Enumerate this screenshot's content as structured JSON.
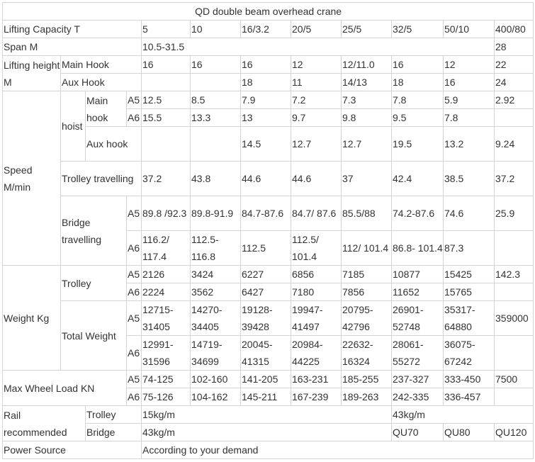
{
  "title": "QD double beam overhead crane",
  "capacity": {
    "label": "Lifting Capacity   T",
    "values": [
      "5",
      "10",
      "16/3.2",
      "20/5",
      "25/5",
      "32/5",
      "50/10",
      "400/80"
    ]
  },
  "span": {
    "label": "Span  M",
    "value": "10.5-31.5",
    "value_last": "28"
  },
  "lifting_height": {
    "label": "Lifting height M",
    "main_label": "Main Hook",
    "main": [
      "16",
      "16",
      "16",
      "12",
      "12/11.0",
      "16",
      "12",
      "22"
    ],
    "aux_label": "Aux Hook",
    "aux": [
      "",
      "",
      "18",
      "11",
      "14/13",
      "18",
      "16",
      "24"
    ]
  },
  "speed": {
    "label": "Speed M/min",
    "hoist_label": "hoist",
    "main_hook_label": "Main hook",
    "aux_hook_label": "Aux hook",
    "a5_label": "A5",
    "a6_label": "A6",
    "main_a5": [
      "12.5",
      "8.5",
      "7.9",
      "7.2",
      "7.3",
      "7.8",
      "5.9",
      "2.92"
    ],
    "main_a6": [
      "15.5",
      "13.3",
      "13",
      "9.7",
      "9.8",
      "9.5",
      "7.8",
      ""
    ],
    "aux": [
      "",
      "",
      "14.5",
      "12.7",
      "12.7",
      "19.5",
      "13.2",
      "9.24"
    ],
    "trolley_label": "Trolley travelling",
    "trolley": [
      "37.2",
      "43.8",
      "44.6",
      "44.6",
      "37",
      "42.4",
      "38.5",
      "37.2"
    ],
    "bridge_label": "Bridge travelling",
    "bridge_a5": [
      "89.8 /92.3",
      "89.8-91.9",
      "84.7-87.6",
      "84.7/ 87.6",
      "85.5/88",
      "74.2-87.6",
      "74.6",
      "25.9"
    ],
    "bridge_a6": [
      "116.2/ 117.4",
      "112.5- 116.8",
      "112.5",
      "112.5/ 101.4",
      "112/ 101.4",
      "86.8- 101.4",
      "87.3",
      ""
    ]
  },
  "weight": {
    "label": "Weight  Kg",
    "a5_label": "A5",
    "a6_label": "A6",
    "trolley_label": "Trolley",
    "trolley_a5": [
      "2126",
      "3424",
      "6227",
      "6856",
      "7185",
      "10877",
      "15425",
      "142.3"
    ],
    "trolley_a6": [
      "2224",
      "3562",
      "6427",
      "7180",
      "7856",
      "11652",
      "15765",
      ""
    ],
    "total_label": "Total Weight",
    "total_a5": [
      "12715- 31405",
      "14270- 34405",
      "19128- 39428",
      "19947- 41497",
      "20795- 42796",
      "26901- 52748",
      "35317- 64880",
      "359000"
    ],
    "total_a6": [
      "12991- 31596",
      "14719- 34699",
      "20045- 41315",
      "20984- 44225",
      "22632- 16324",
      "28061- 55272",
      "36075- 67242",
      ""
    ]
  },
  "wheel_load": {
    "label": "Max Wheel Load KN",
    "a5_label": "A5",
    "a6_label": "A6",
    "a5": [
      "74-125",
      "102-160",
      "141-205",
      "163-231",
      "185-255",
      "237-327",
      "333-450",
      "7500"
    ],
    "a6": [
      "75-126",
      "104-162",
      "145-211",
      "167-239",
      "189-263",
      "242-335",
      "336-457",
      ""
    ]
  },
  "rail": {
    "label": "Rail recommended",
    "trolley_label": "Trolley",
    "trolley_small": "15kg/m",
    "trolley_large": "43kg/m",
    "bridge_label": "Bridge",
    "bridge_small": "43kg/m",
    "bridge_large": [
      "QU70",
      "QU80",
      "QU120"
    ]
  },
  "power": {
    "label": "Power Source",
    "value": "According to your demand"
  }
}
